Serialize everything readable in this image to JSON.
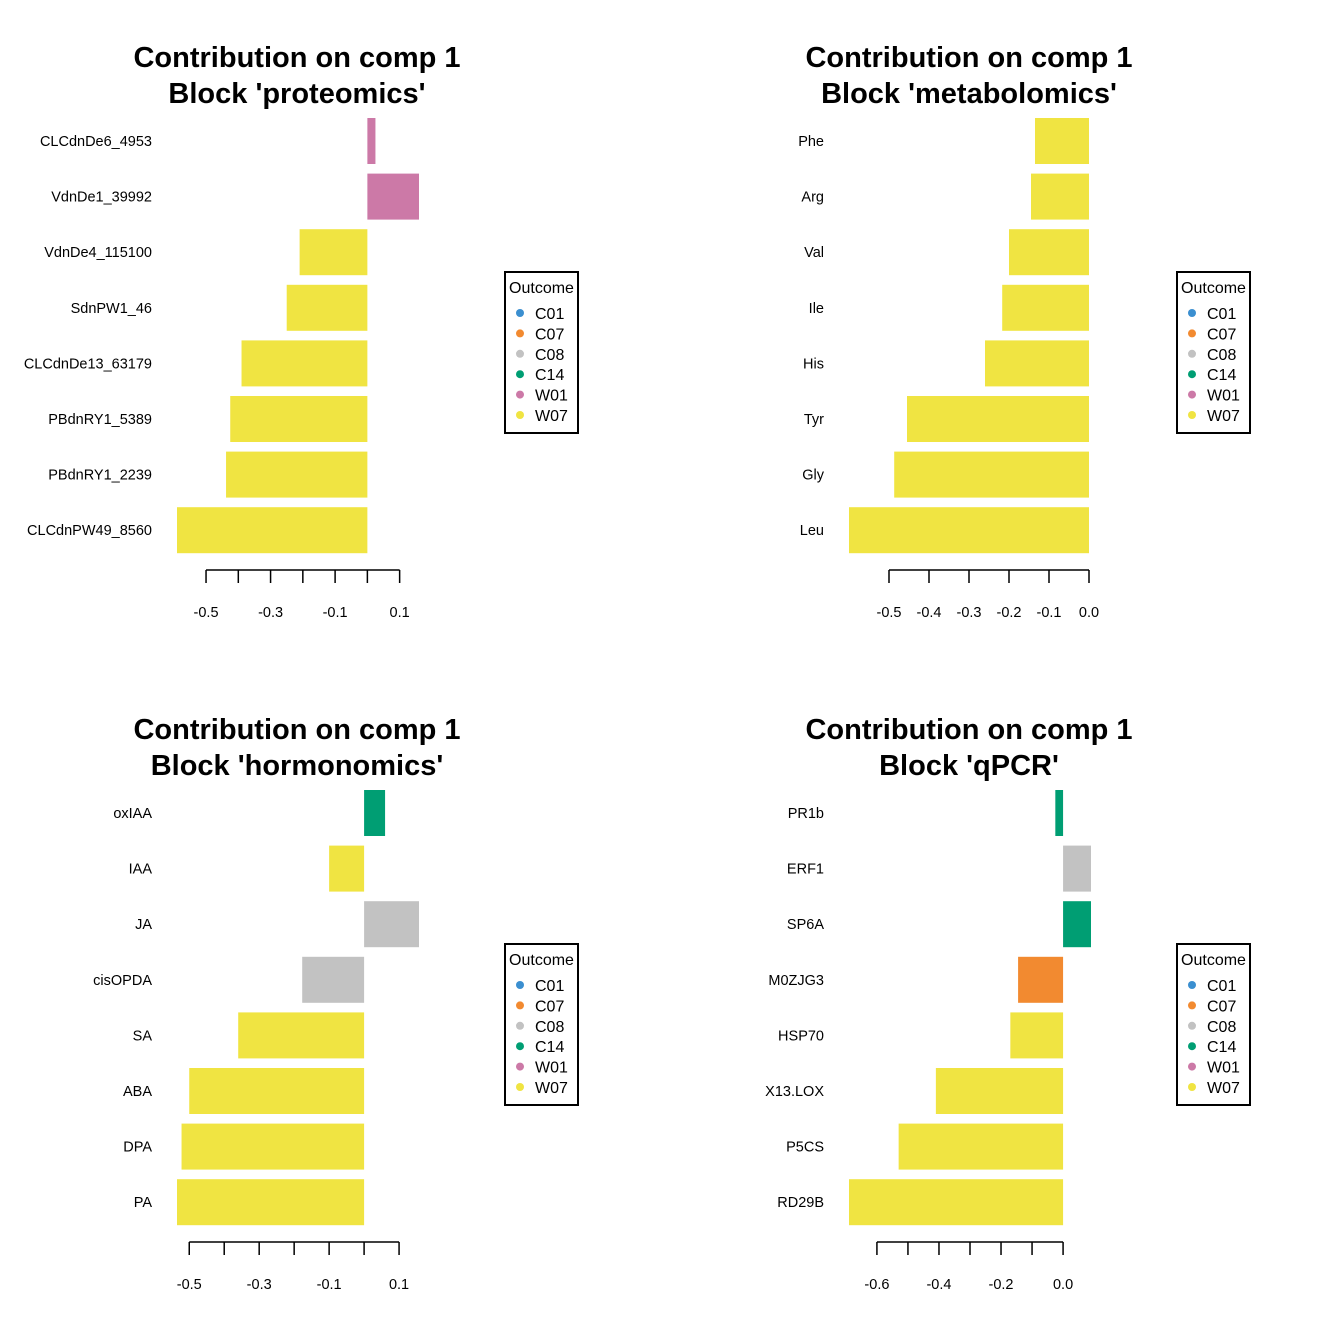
{
  "legend": {
    "title": "Outcome",
    "entries": [
      {
        "label": "C01",
        "color": "#3B8FD0"
      },
      {
        "label": "C07",
        "color": "#F28A30"
      },
      {
        "label": "C08",
        "color": "#C2C2C2"
      },
      {
        "label": "C14",
        "color": "#009E73"
      },
      {
        "label": "W01",
        "color": "#CC79A7"
      },
      {
        "label": "W07",
        "color": "#F0E442"
      }
    ]
  },
  "chart_data": [
    {
      "type": "bar",
      "orientation": "horizontal",
      "title": [
        "Contribution on comp 1",
        "Block 'proteomics'"
      ],
      "xlim": [
        -0.59,
        0.16
      ],
      "ticks": [
        -0.5,
        -0.4,
        -0.3,
        -0.2,
        -0.1,
        0.0,
        0.1
      ],
      "tick_labels": [
        "-0.5",
        "",
        "-0.3",
        "",
        "-0.1",
        "",
        "0.1"
      ],
      "categories": [
        "CLCdnDe6_4953",
        "VdnDe1_39992",
        "VdnDe4_115100",
        "SdnPW1_46",
        "CLCdnDe13_63179",
        "PBdnRY1_5389",
        "PBdnRY1_2239",
        "CLCdnPW49_8560"
      ],
      "values": [
        0.025,
        0.16,
        -0.21,
        -0.25,
        -0.39,
        -0.425,
        -0.438,
        -0.59
      ],
      "outcome": [
        "W01",
        "W01",
        "W07",
        "W07",
        "W07",
        "W07",
        "W07",
        "W07"
      ]
    },
    {
      "type": "bar",
      "orientation": "horizontal",
      "title": [
        "Contribution on comp 1",
        "Block 'metabolomics'"
      ],
      "xlim": [
        -0.6,
        0.0
      ],
      "ticks": [
        -0.5,
        -0.4,
        -0.3,
        -0.2,
        -0.1,
        0.0
      ],
      "tick_labels": [
        "-0.5",
        "-0.4",
        "-0.3",
        "-0.2",
        "-0.1",
        "0.0"
      ],
      "categories": [
        "Phe",
        "Arg",
        "Val",
        "Ile",
        "His",
        "Tyr",
        "Gly",
        "Leu"
      ],
      "values": [
        -0.135,
        -0.145,
        -0.2,
        -0.217,
        -0.26,
        -0.455,
        -0.487,
        -0.6
      ],
      "outcome": [
        "W07",
        "W07",
        "W07",
        "W07",
        "W07",
        "W07",
        "W07",
        "W07"
      ]
    },
    {
      "type": "bar",
      "orientation": "horizontal",
      "title": [
        "Contribution on comp 1",
        "Block 'hormonomics'"
      ],
      "xlim": [
        -0.535,
        0.157
      ],
      "ticks": [
        -0.5,
        -0.4,
        -0.3,
        -0.2,
        -0.1,
        0.0,
        0.1
      ],
      "tick_labels": [
        "-0.5",
        "",
        "-0.3",
        "",
        "-0.1",
        "",
        "0.1"
      ],
      "categories": [
        "oxIAA",
        "IAA",
        "JA",
        "cisOPDA",
        "SA",
        "ABA",
        "DPA",
        "PA"
      ],
      "values": [
        0.06,
        -0.1,
        0.157,
        -0.177,
        -0.36,
        -0.5,
        -0.522,
        -0.535
      ],
      "outcome": [
        "C14",
        "W07",
        "C08",
        "C08",
        "W07",
        "W07",
        "W07",
        "W07"
      ]
    },
    {
      "type": "bar",
      "orientation": "horizontal",
      "title": [
        "Contribution on comp 1",
        "Block 'qPCR'"
      ],
      "xlim": [
        -0.69,
        0.09
      ],
      "ticks": [
        -0.6,
        -0.5,
        -0.4,
        -0.3,
        -0.2,
        -0.1,
        0.0
      ],
      "tick_labels": [
        "-0.6",
        "",
        "-0.4",
        "",
        "-0.2",
        "",
        "0.0"
      ],
      "categories": [
        "PR1b",
        "ERF1",
        "SP6A",
        "M0ZJG3",
        "HSP70",
        "X13.LOX",
        "P5CS",
        "RD29B"
      ],
      "values": [
        -0.025,
        0.09,
        0.09,
        -0.145,
        -0.17,
        -0.41,
        -0.53,
        -0.69
      ],
      "outcome": [
        "C14",
        "C08",
        "C14",
        "C07",
        "W07",
        "W07",
        "W07",
        "W07"
      ]
    }
  ]
}
